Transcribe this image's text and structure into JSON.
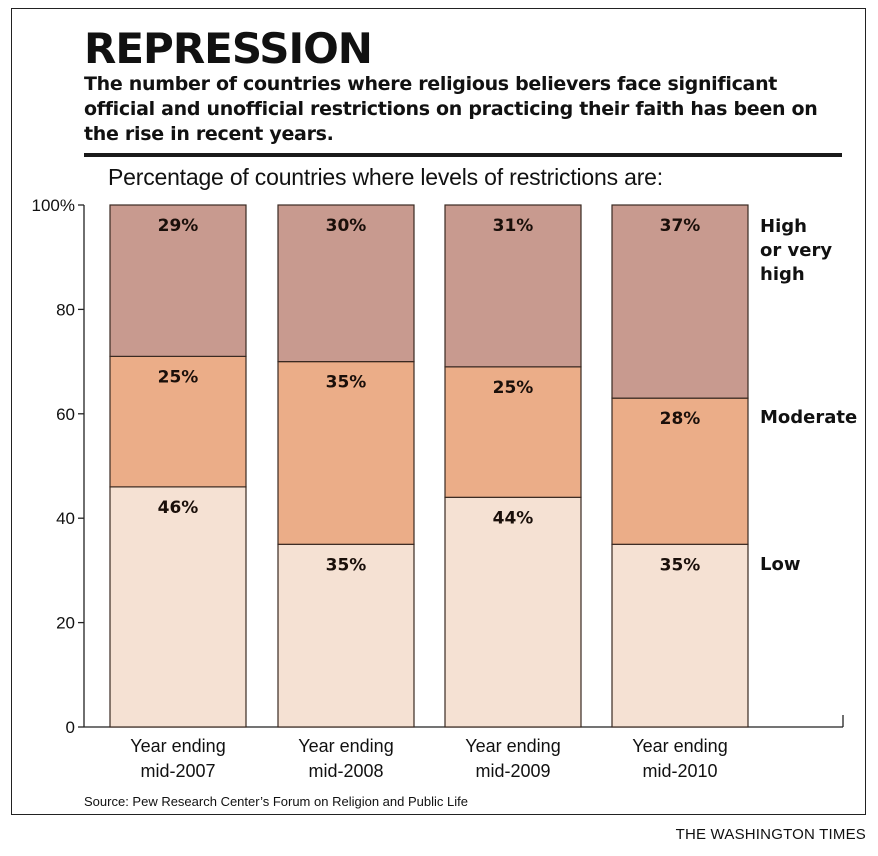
{
  "header": {
    "title": "REPRESSION",
    "subtitle": "The number of countries where religious believers face significant official and unofficial restrictions on practicing their faith has been on the rise in recent years."
  },
  "footer": {
    "source": "Source: Pew Research Center’s Forum on Religion and Public Life",
    "credit": "THE WASHINGTON TIMES"
  },
  "chart_data": {
    "type": "bar",
    "stacked": true,
    "title": "Percentage of countries where levels of restrictions are:",
    "categories": [
      [
        "Year ending",
        "mid-2007"
      ],
      [
        "Year ending",
        "mid-2008"
      ],
      [
        "Year ending",
        "mid-2009"
      ],
      [
        "Year ending",
        "mid-2010"
      ]
    ],
    "series": [
      {
        "name": "Low",
        "legend_lines": [
          "Low"
        ],
        "color": "#f5e1d3",
        "values": [
          46,
          35,
          44,
          35
        ],
        "labels": [
          "46%",
          "35%",
          "44%",
          "35%"
        ]
      },
      {
        "name": "Moderate",
        "legend_lines": [
          "Moderate"
        ],
        "color": "#ebad88",
        "values": [
          25,
          35,
          25,
          28
        ],
        "labels": [
          "25%",
          "35%",
          "25%",
          "28%"
        ]
      },
      {
        "name": "High or very high",
        "legend_lines": [
          "High",
          "or very",
          "high"
        ],
        "color": "#c89a8f",
        "values": [
          29,
          30,
          31,
          37
        ],
        "labels": [
          "29%",
          "30%",
          "31%",
          "37%"
        ]
      }
    ],
    "ylim": [
      0,
      100
    ],
    "yticks": [
      0,
      20,
      40,
      60,
      80,
      100
    ],
    "ytick_labels": [
      "0",
      "20",
      "40",
      "60",
      "80",
      "100%"
    ],
    "grid": false,
    "legend": "right"
  }
}
